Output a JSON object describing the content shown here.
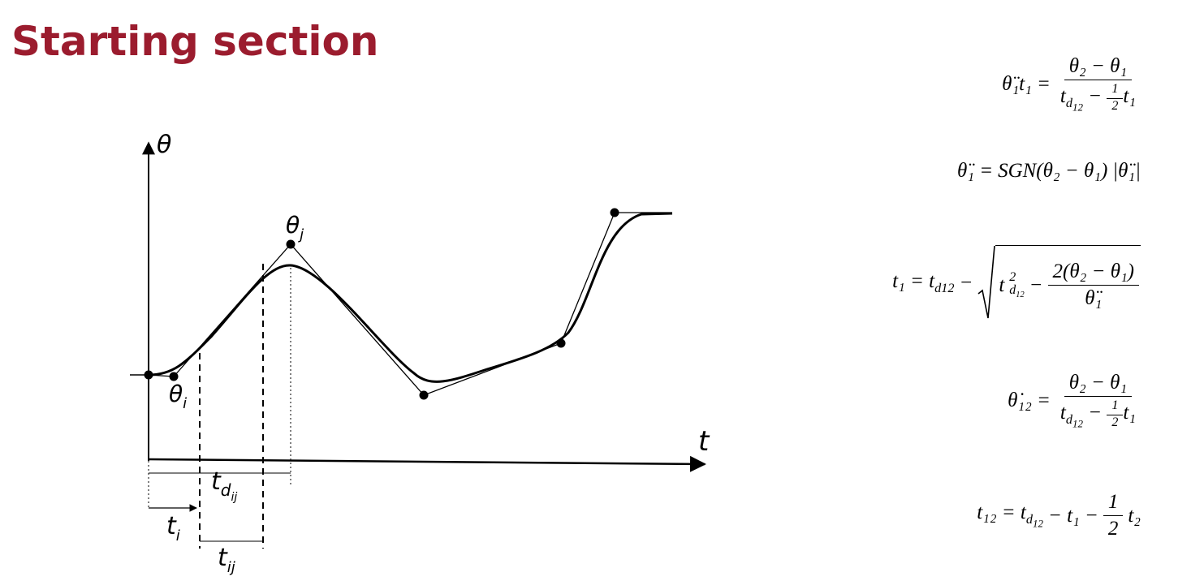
{
  "title": "Starting section",
  "diagram": {
    "y_axis": "θ",
    "x_axis": "t",
    "theta_j": {
      "base": "θ",
      "sub": "j"
    },
    "theta_i": {
      "base": "θ",
      "sub": "i"
    },
    "t_dij": {
      "base": "t",
      "sub": "d",
      "subsub": "ij"
    },
    "t_i": {
      "base": "t",
      "sub": "i"
    },
    "t_ij": {
      "base": "t",
      "sub": "ij"
    }
  },
  "equations": [
    {
      "lhs": "θ̈₁t₁ =",
      "num": "θ₂ − θ₁",
      "den_t": "t",
      "den_sub": "d",
      "den_subsub": "12",
      "den_op": "−",
      "half_num": "1",
      "half_den": "2",
      "den_tail": "t₁"
    },
    {
      "lhs": "θ̈₁ =",
      "body": "SGN(θ₂ − θ₁)",
      "abs": "|θ̈₁|"
    },
    {
      "lhs": "t₁ = t",
      "lhs_sub": "d12",
      "op": "−",
      "root_t": "t",
      "root_sup": "2",
      "root_sub": "d",
      "root_subsub": "12",
      "root_op": "−",
      "num": "2(θ₂ − θ₁)",
      "den": "θ̈₁"
    },
    {
      "lhs": "θ̇₁₂ =",
      "num": "θ₂ − θ₁",
      "den_t": "t",
      "den_sub": "d",
      "den_subsub": "12",
      "den_op": "−",
      "half_num": "1",
      "half_den": "2",
      "den_tail": "t₁"
    },
    {
      "lhs": "t₁₂ = t",
      "lhs_sub": "d",
      "lhs_subsub": "12",
      "mid": "− t₁ −",
      "half_num": "1",
      "half_den": "2",
      "tail": "t₂"
    }
  ]
}
